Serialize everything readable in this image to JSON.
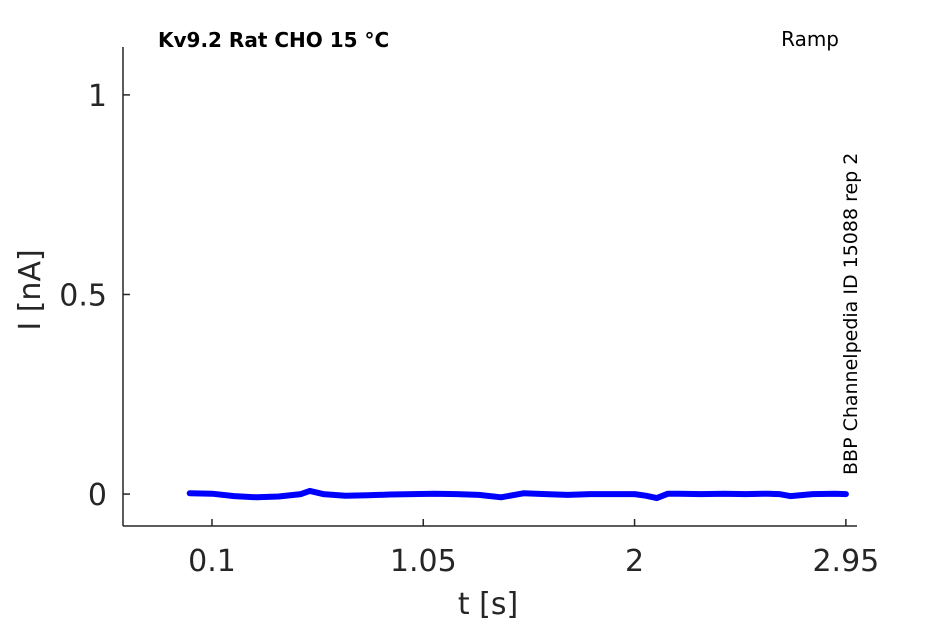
{
  "chart_data": {
    "type": "line",
    "title": "Kv9.2  Rat  CHO  15 °C",
    "protocol_label": "Ramp",
    "side_label": "BBP Channelpedia ID 15088 rep 2",
    "xlabel": "t [s]",
    "ylabel": "I [nA]",
    "xlim": [
      -0.3,
      3.0
    ],
    "ylim": [
      -0.08,
      1.12
    ],
    "x_ticks": [
      0.1,
      1.05,
      2,
      2.95
    ],
    "x_tick_labels": [
      "0.1",
      "1.05",
      "2",
      "2.95"
    ],
    "y_ticks": [
      0,
      0.5,
      1
    ],
    "y_tick_labels": [
      "0",
      "0.5",
      "1"
    ],
    "grid": false,
    "series": [
      {
        "color": "#0000ff",
        "x": [
          0.0,
          0.1,
          0.2,
          0.3,
          0.4,
          0.5,
          0.54,
          0.6,
          0.7,
          0.8,
          0.9,
          1.0,
          1.1,
          1.2,
          1.3,
          1.4,
          1.5,
          1.6,
          1.7,
          1.75,
          1.8,
          1.9,
          2.0,
          2.05,
          2.1,
          2.15,
          2.2,
          2.3,
          2.4,
          2.5,
          2.6,
          2.65,
          2.7,
          2.8,
          2.9,
          2.95
        ],
        "y": [
          0.002,
          0.001,
          -0.005,
          -0.008,
          -0.006,
          0.0,
          0.008,
          0.0,
          -0.004,
          -0.003,
          -0.001,
          0.0,
          0.001,
          0.0,
          -0.002,
          -0.008,
          0.002,
          0.0,
          -0.002,
          -0.001,
          0.0,
          0.0,
          0.0,
          -0.004,
          -0.01,
          0.001,
          0.001,
          0.0,
          0.001,
          0.0,
          0.001,
          0.0,
          -0.005,
          0.0,
          0.001,
          0.0
        ]
      }
    ]
  }
}
